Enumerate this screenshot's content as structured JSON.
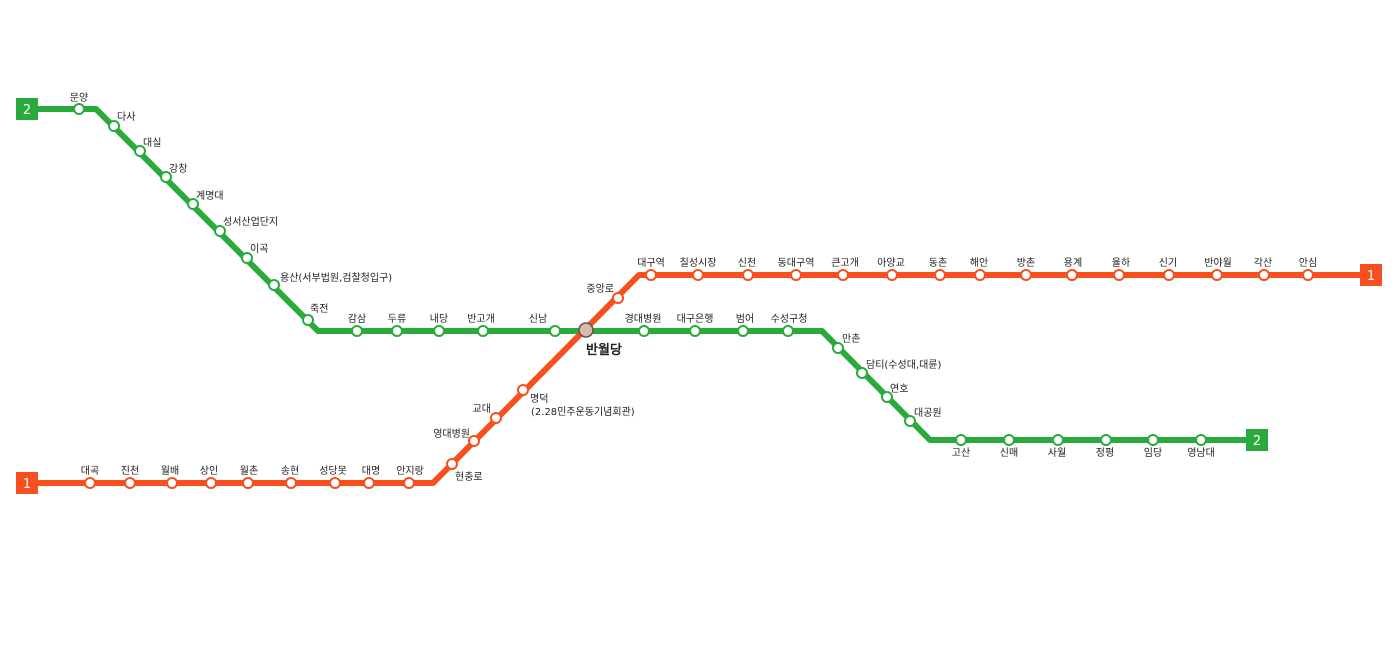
{
  "colors": {
    "line1": "#f5501e",
    "line2": "#2aaa3c",
    "transfer": "#d9b9aa"
  },
  "line2": {
    "badge": "2",
    "stations": [
      "문양",
      "다사",
      "대실",
      "강창",
      "계명대",
      "성서산업단지",
      "이곡",
      "용산(서부법원,검찰청입구)",
      "죽전",
      "감삼",
      "두류",
      "내당",
      "반고개",
      "신남",
      "경대병원",
      "대구은행",
      "범어",
      "수성구청",
      "만촌",
      "담티(수성대,대륜)",
      "연호",
      "대공원",
      "고산",
      "신매",
      "사월",
      "정평",
      "임당",
      "영남대"
    ]
  },
  "line1": {
    "badge": "1",
    "stations": [
      "대곡",
      "진천",
      "월배",
      "상인",
      "월촌",
      "송현",
      "성당못",
      "대명",
      "안지랑",
      "현충로",
      "영대병원",
      "교대",
      "명덕",
      "(2.28민주운동기념회관)",
      "중앙로",
      "대구역",
      "칠성시장",
      "신천",
      "동대구역",
      "큰고개",
      "아양교",
      "동촌",
      "해안",
      "방촌",
      "용계",
      "율하",
      "신기",
      "반야월",
      "각산",
      "안심"
    ]
  },
  "transfer": {
    "name": "반월당"
  }
}
